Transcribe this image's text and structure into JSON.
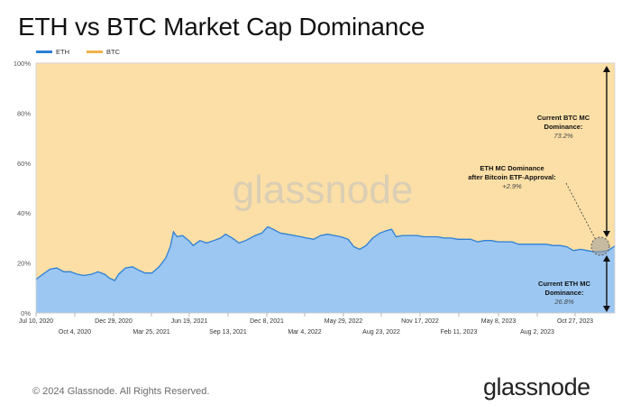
{
  "header": {
    "title": "ETH vs BTC Market Cap Dominance"
  },
  "footer": {
    "copyright": "© 2024 Glassnode. All Rights Reserved.",
    "brand": "glassnode"
  },
  "watermark": "glassnode",
  "colors": {
    "eth_fill": "#9cc7f2",
    "eth_line": "#2c7fd6",
    "btc_fill": "#fbdfa6",
    "btc_line": "#f2b24a"
  },
  "chart_data": {
    "type": "area",
    "stacked": true,
    "title": "ETH vs BTC Market Cap Dominance",
    "legend": {
      "position": "top-left",
      "entries": [
        "ETH",
        "BTC"
      ]
    },
    "ylim": [
      0,
      100
    ],
    "y_ticks": [
      "0%",
      "20%",
      "40%",
      "60%",
      "80%",
      "100%"
    ],
    "x_ticks_row1": [
      "Jul 10, 2020",
      "Dec 29, 2020",
      "Jun 19, 2021",
      "Dec 8, 2021",
      "May 29, 2022",
      "Nov 17, 2022",
      "May 8, 2023",
      "Oct 27, 2023"
    ],
    "x_ticks_row2": [
      "Oct 4, 2020",
      "Mar 25, 2021",
      "Sep 13, 2021",
      "Mar 4, 2022",
      "Aug 23, 2022",
      "Feb 11, 2023",
      "Aug 2, 2023"
    ],
    "xlim": [
      "2020-07-10",
      "2024-01-20"
    ],
    "series": [
      {
        "name": "ETH",
        "points": [
          [
            "2020-07-10",
            13.5
          ],
          [
            "2020-07-25",
            15.5
          ],
          [
            "2020-08-10",
            17.5
          ],
          [
            "2020-08-25",
            18
          ],
          [
            "2020-09-10",
            16.5
          ],
          [
            "2020-09-25",
            16.5
          ],
          [
            "2020-10-10",
            15.5
          ],
          [
            "2020-10-25",
            15
          ],
          [
            "2020-11-10",
            15.5
          ],
          [
            "2020-11-25",
            16.5
          ],
          [
            "2020-12-10",
            15.5
          ],
          [
            "2020-12-20",
            14
          ],
          [
            "2021-01-01",
            13
          ],
          [
            "2021-01-10",
            15.5
          ],
          [
            "2021-01-25",
            18
          ],
          [
            "2021-02-10",
            18.5
          ],
          [
            "2021-02-25",
            17
          ],
          [
            "2021-03-10",
            16
          ],
          [
            "2021-03-25",
            16
          ],
          [
            "2021-04-10",
            18.5
          ],
          [
            "2021-04-25",
            22
          ],
          [
            "2021-05-05",
            26.5
          ],
          [
            "2021-05-12",
            32.5
          ],
          [
            "2021-05-20",
            30.5
          ],
          [
            "2021-06-01",
            31
          ],
          [
            "2021-06-15",
            29
          ],
          [
            "2021-06-25",
            27
          ],
          [
            "2021-07-10",
            29
          ],
          [
            "2021-07-25",
            28
          ],
          [
            "2021-08-10",
            29
          ],
          [
            "2021-08-25",
            30
          ],
          [
            "2021-09-05",
            31.5
          ],
          [
            "2021-09-20",
            30
          ],
          [
            "2021-10-05",
            28
          ],
          [
            "2021-10-20",
            29
          ],
          [
            "2021-11-10",
            31
          ],
          [
            "2021-11-25",
            32
          ],
          [
            "2021-12-08",
            34.5
          ],
          [
            "2021-12-20",
            33.5
          ],
          [
            "2022-01-05",
            32
          ],
          [
            "2022-01-20",
            31.5
          ],
          [
            "2022-02-05",
            31
          ],
          [
            "2022-02-20",
            30.5
          ],
          [
            "2022-03-05",
            30
          ],
          [
            "2022-03-20",
            29.5
          ],
          [
            "2022-04-05",
            31
          ],
          [
            "2022-04-20",
            31.5
          ],
          [
            "2022-05-05",
            31
          ],
          [
            "2022-05-20",
            30.5
          ],
          [
            "2022-06-05",
            29.5
          ],
          [
            "2022-06-18",
            26.5
          ],
          [
            "2022-07-01",
            25.5
          ],
          [
            "2022-07-15",
            27
          ],
          [
            "2022-07-30",
            30
          ],
          [
            "2022-08-15",
            32
          ],
          [
            "2022-08-30",
            33
          ],
          [
            "2022-09-10",
            33.5
          ],
          [
            "2022-09-20",
            30.5
          ],
          [
            "2022-10-05",
            31
          ],
          [
            "2022-10-20",
            31
          ],
          [
            "2022-11-05",
            31
          ],
          [
            "2022-11-20",
            30.5
          ],
          [
            "2022-12-05",
            30.5
          ],
          [
            "2022-12-20",
            30.5
          ],
          [
            "2023-01-05",
            30
          ],
          [
            "2023-01-20",
            30
          ],
          [
            "2023-02-05",
            29.5
          ],
          [
            "2023-02-20",
            29.5
          ],
          [
            "2023-03-05",
            29.5
          ],
          [
            "2023-03-20",
            28.5
          ],
          [
            "2023-04-05",
            29
          ],
          [
            "2023-04-20",
            29
          ],
          [
            "2023-05-05",
            28.5
          ],
          [
            "2023-05-20",
            28.5
          ],
          [
            "2023-06-05",
            28.5
          ],
          [
            "2023-06-20",
            27.5
          ],
          [
            "2023-07-05",
            27.5
          ],
          [
            "2023-07-20",
            27.5
          ],
          [
            "2023-08-05",
            27.5
          ],
          [
            "2023-08-20",
            27.5
          ],
          [
            "2023-09-05",
            27
          ],
          [
            "2023-09-20",
            27
          ],
          [
            "2023-10-05",
            26.5
          ],
          [
            "2023-10-20",
            25
          ],
          [
            "2023-11-05",
            25.5
          ],
          [
            "2023-11-20",
            25
          ],
          [
            "2023-12-05",
            24.5
          ],
          [
            "2023-12-20",
            24.5
          ],
          [
            "2024-01-05",
            25
          ],
          [
            "2024-01-20",
            26.8
          ]
        ]
      },
      {
        "name": "BTC",
        "note_values": "100 minus ETH share (stacked to 100%)"
      }
    ],
    "annotations": {
      "btc_current": {
        "label": "Current BTC MC Dominance:",
        "value": "73.2%"
      },
      "eth_current": {
        "label": "Current ETH MC Dominance:",
        "value": "26.8%"
      },
      "etf": {
        "label": "ETH MC Dominance after Bitcoin ETF-Approval:",
        "value": "+2.9%"
      }
    }
  }
}
